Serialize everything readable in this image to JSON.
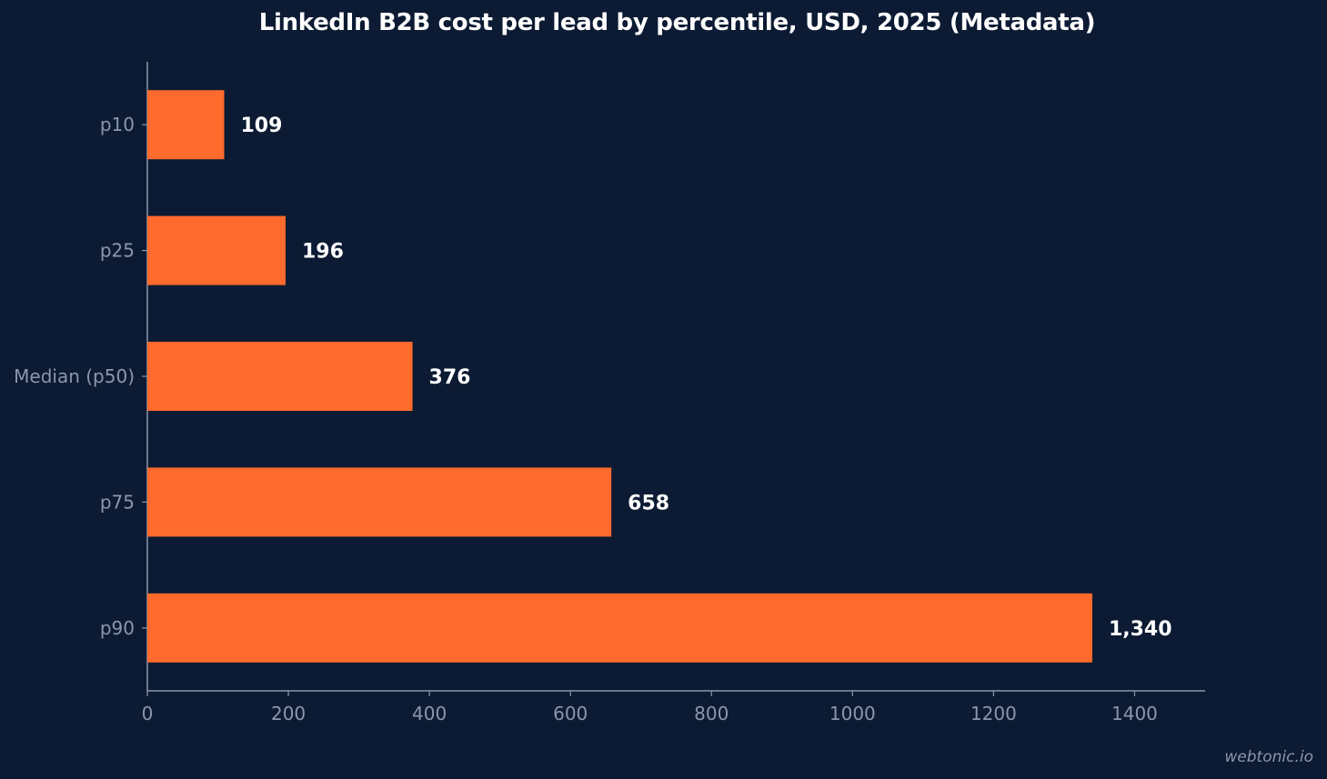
{
  "chart_data": {
    "type": "bar",
    "orientation": "horizontal",
    "title": "LinkedIn B2B cost per lead by percentile, USD, 2025 (Metadata)",
    "categories": [
      "p10",
      "p25",
      "Median (p50)",
      "p75",
      "p90"
    ],
    "values": [
      109,
      196,
      376,
      658,
      1340
    ],
    "value_labels": [
      "109",
      "196",
      "376",
      "658",
      "1,340"
    ],
    "xlim": [
      0,
      1500
    ],
    "xticks": [
      0,
      200,
      400,
      600,
      800,
      1000,
      1200,
      1400
    ],
    "xlabel": "",
    "ylabel": "",
    "grid": false,
    "legend": "none"
  },
  "colors": {
    "background": "#0c1b33",
    "bar": "#ff6a2d",
    "axis": "#8a97ab",
    "tick_label": "#8a97ab",
    "value_label": "#ffffff",
    "title": "#ffffff"
  },
  "watermark": "webtonic.io"
}
